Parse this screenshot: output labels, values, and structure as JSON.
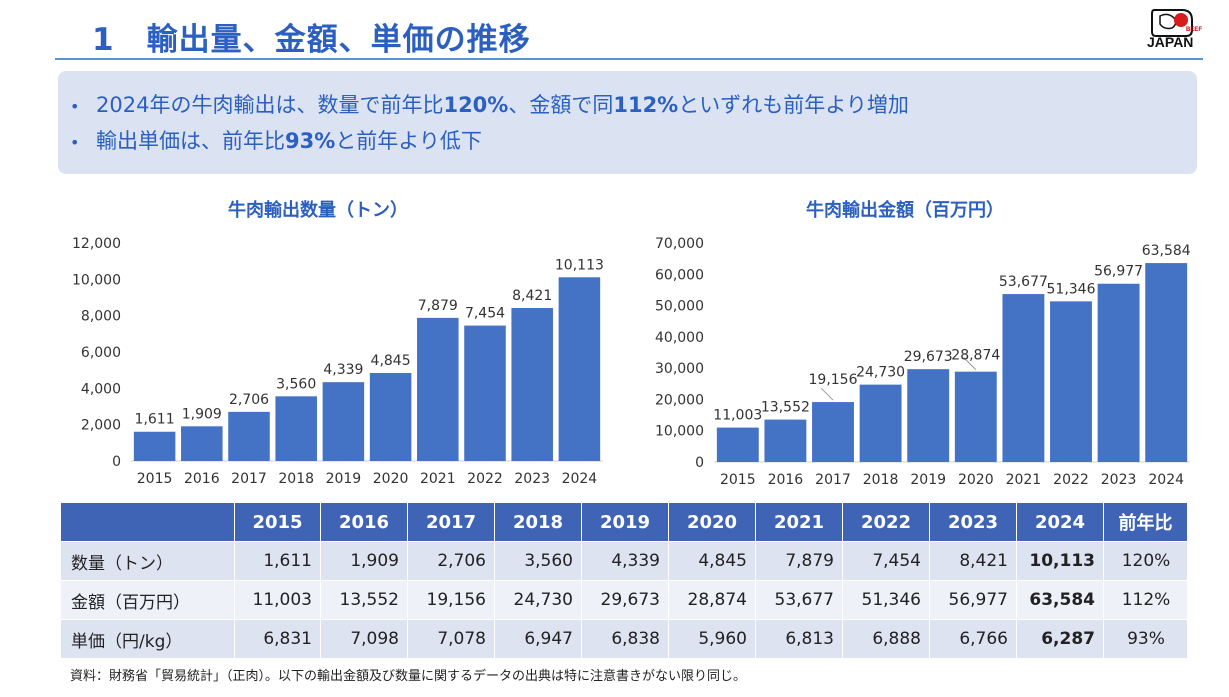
{
  "header": {
    "title": "1　輸出量、金額、単価の推移",
    "logo_text": "JAPAN",
    "logo_sub": "BEEF"
  },
  "summary": {
    "bullets": [
      {
        "pre": "2024年の牛肉輸出は、数量で前年比",
        "b1": "120%",
        "mid": "、金額で同",
        "b2": "112%",
        "post": "といずれも前年より増加"
      },
      {
        "pre": "輸出単価は、前年比",
        "b1": "93%",
        "post": "と前年より低下"
      }
    ],
    "bullet_char": "•"
  },
  "chart_data": [
    {
      "type": "bar",
      "title": "牛肉輸出数量（トン）",
      "categories": [
        "2015",
        "2016",
        "2017",
        "2018",
        "2019",
        "2020",
        "2021",
        "2022",
        "2023",
        "2024"
      ],
      "values": [
        1611,
        1909,
        2706,
        3560,
        4339,
        4845,
        7879,
        7454,
        8421,
        10113
      ],
      "value_labels": [
        "1,611",
        "1,909",
        "2,706",
        "3,560",
        "4,339",
        "4,845",
        "7,879",
        "7,454",
        "8,421",
        "10,113"
      ],
      "yticks": [
        "0",
        "2,000",
        "4,000",
        "6,000",
        "8,000",
        "10,000",
        "12,000"
      ],
      "ylim": [
        0,
        12000
      ],
      "xlabel": "",
      "ylabel": "",
      "color": "#4472c4"
    },
    {
      "type": "bar",
      "title": "牛肉輸出金額（百万円）",
      "categories": [
        "2015",
        "2016",
        "2017",
        "2018",
        "2019",
        "2020",
        "2021",
        "2022",
        "2023",
        "2024"
      ],
      "values": [
        11003,
        13552,
        19156,
        24730,
        29673,
        28874,
        53677,
        51346,
        56977,
        63584
      ],
      "value_labels": [
        "11,003",
        "13,552",
        "19,156",
        "24,730",
        "29,673",
        "28,874",
        "53,677",
        "51,346",
        "56,977",
        "63,584"
      ],
      "yticks": [
        "0",
        "10,000",
        "20,000",
        "30,000",
        "40,000",
        "50,000",
        "60,000",
        "70,000"
      ],
      "ylim": [
        0,
        70000
      ],
      "xlabel": "",
      "ylabel": "",
      "color": "#4472c4"
    }
  ],
  "table": {
    "headers": [
      "",
      "2015",
      "2016",
      "2017",
      "2018",
      "2019",
      "2020",
      "2021",
      "2022",
      "2023",
      "2024",
      "前年比"
    ],
    "rows": [
      {
        "label": "数量（トン）",
        "values": [
          "1,611",
          "1,909",
          "2,706",
          "3,560",
          "4,339",
          "4,845",
          "7,879",
          "7,454",
          "8,421",
          "10,113"
        ],
        "ratio": "120%"
      },
      {
        "label": "金額（百万円）",
        "values": [
          "11,003",
          "13,552",
          "19,156",
          "24,730",
          "29,673",
          "28,874",
          "53,677",
          "51,346",
          "56,977",
          "63,584"
        ],
        "ratio": "112%"
      },
      {
        "label": "単価（円/kg）",
        "values": [
          "6,831",
          "7,098",
          "7,078",
          "6,947",
          "6,838",
          "5,960",
          "6,813",
          "6,888",
          "6,766",
          "6,287"
        ],
        "ratio": "93%"
      }
    ]
  },
  "source": "資料：財務省「貿易統計」（正肉）。以下の輸出金額及び数量に関するデータの出典は特に注意書きがない限り同じ。"
}
